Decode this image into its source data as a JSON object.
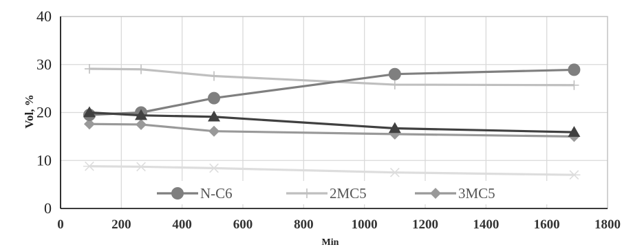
{
  "chart_data": {
    "type": "line",
    "xlabel": "Min",
    "ylabel": "Vol, %",
    "xlim": [
      0,
      1800
    ],
    "ylim": [
      0,
      40
    ],
    "x_ticks": [
      0,
      200,
      400,
      600,
      800,
      1000,
      1200,
      1400,
      1600,
      1800
    ],
    "y_ticks": [
      0,
      10,
      20,
      30,
      40
    ],
    "grid": true,
    "legend_position": "bottom-center",
    "x": [
      95,
      265,
      505,
      1100,
      1690
    ],
    "series": [
      {
        "name": "N-C6",
        "values": [
          19.5,
          20.0,
          23.0,
          28.0,
          28.9
        ],
        "color": "#7f7f7f",
        "marker": "circle"
      },
      {
        "name": "2MC5",
        "values": [
          29.1,
          29.0,
          27.6,
          25.8,
          25.7
        ],
        "color": "#bfbfbf",
        "marker": "plus"
      },
      {
        "name": "3MC5",
        "values": [
          17.6,
          17.5,
          16.1,
          15.5,
          15.0
        ],
        "color": "#999999",
        "marker": "diamond"
      },
      {
        "values": [
          20.0,
          19.4,
          19.1,
          16.7,
          15.9
        ],
        "color": "#404040",
        "marker": "triangle"
      },
      {
        "values": [
          8.8,
          8.7,
          8.4,
          7.5,
          7.0
        ],
        "color": "#dddddd",
        "marker": "star"
      }
    ]
  }
}
